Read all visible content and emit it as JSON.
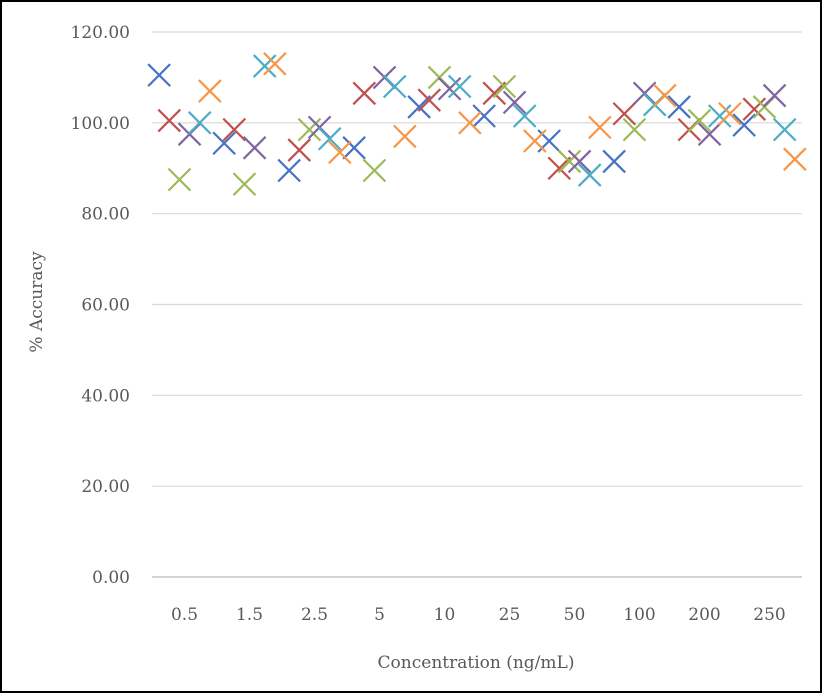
{
  "chart_data": {
    "type": "scatter",
    "title": "",
    "xlabel": "Concentration (ng/mL)",
    "ylabel": "% Accuracy",
    "categories": [
      "0.5",
      "1.5",
      "2.5",
      "5",
      "10",
      "25",
      "50",
      "100",
      "200",
      "250"
    ],
    "ylim": [
      0,
      120
    ],
    "yticks": [
      "0.00",
      "20.00",
      "40.00",
      "60.00",
      "80.00",
      "100.00",
      "120.00"
    ],
    "grid": true,
    "legend": "none",
    "marker": "x",
    "series": [
      {
        "color": "#4472C4",
        "values": [
          110.5,
          95.5,
          89.5,
          94.5,
          103.5,
          101.5,
          96.0,
          91.5,
          103.5,
          99.5
        ]
      },
      {
        "color": "#C0504D",
        "values": [
          100.5,
          98.5,
          94.0,
          106.5,
          105.0,
          106.5,
          90.0,
          102.0,
          98.5,
          103.0
        ]
      },
      {
        "color": "#9BBB59",
        "values": [
          87.5,
          86.5,
          98.5,
          89.5,
          110.0,
          108.0,
          91.5,
          98.5,
          100.5,
          103.5
        ]
      },
      {
        "color": "#8064A2",
        "values": [
          97.5,
          94.5,
          99.0,
          110.0,
          107.5,
          104.5,
          91.5,
          106.5,
          97.5,
          106.0
        ]
      },
      {
        "color": "#4BACC6",
        "values": [
          100.0,
          112.5,
          96.5,
          108.0,
          108.0,
          101.5,
          88.5,
          104.0,
          101.5,
          98.5
        ]
      },
      {
        "color": "#F79646",
        "values": [
          107.0,
          113.0,
          93.5,
          97.0,
          100.0,
          96.0,
          99.0,
          106.0,
          102.0,
          92.0
        ]
      }
    ]
  }
}
